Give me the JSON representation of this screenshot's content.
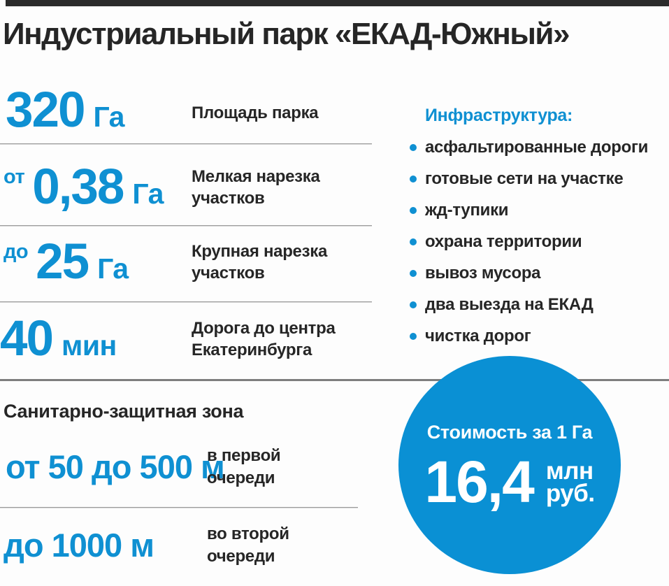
{
  "title": "Индустриальный парк «ЕКАД-Южный»",
  "colors": {
    "accent_blue": "#0f90d2",
    "circle_blue": "#0a90d4",
    "dark_text": "#262626",
    "divider_gray": "#9b9b9b",
    "top_bar": "#2b2b2b"
  },
  "icons": {
    "bullet": "dot-icon"
  },
  "stats": [
    {
      "prefix": "",
      "value": "320",
      "unit": "Га",
      "label": "Площадь парка"
    },
    {
      "prefix": "от",
      "value": "0,38",
      "unit": "Га",
      "label": "Мелкая нарезка участков"
    },
    {
      "prefix": "до",
      "value": "25",
      "unit": "Га",
      "label": "Крупная нарезка участков"
    },
    {
      "prefix": "",
      "value": "40",
      "unit": "мин",
      "label": "Дорога до центра Екатеринбурга"
    }
  ],
  "infrastructure": {
    "heading": "Инфраструктура:",
    "items": [
      "асфальтированные дороги",
      "готовые сети на участке",
      "жд-тупики",
      "охрана территории",
      "вывоз мусора",
      "два выезда на ЕКАД",
      "чистка дорог"
    ]
  },
  "sanitary_zone": {
    "heading": "Санитарно-защитная зона",
    "rows": [
      {
        "value": "от 50 до 500 м",
        "label": "в первой очереди"
      },
      {
        "value": "до 1000 м",
        "label": "во второй очереди"
      }
    ]
  },
  "price_circle": {
    "heading": "Стоимость за 1 Га",
    "value": "16,4",
    "unit_line1": "млн",
    "unit_line2": "руб."
  }
}
